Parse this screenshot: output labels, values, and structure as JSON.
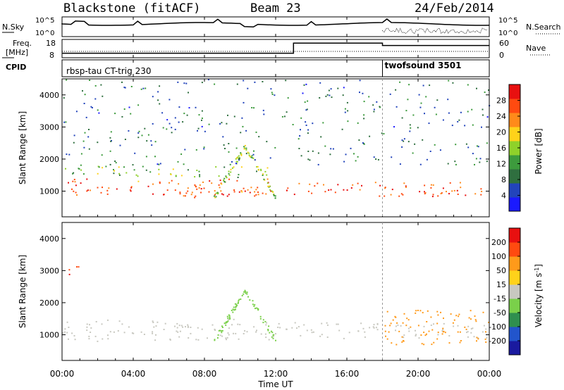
{
  "header": {
    "station": "Blackstone (fitACF)",
    "beam": "Beam 23",
    "date": "24/Feb/2014"
  },
  "top_panels": {
    "nsky_label": "N.Sky",
    "nsky_ticks": [
      "10^5",
      "10^0"
    ],
    "nsearch_label": "N.Search",
    "freq_label_1": "Freq.",
    "freq_label_2": "[MHz]",
    "freq_ticks": [
      "18",
      "8"
    ],
    "nave_label": "Nave",
    "nave_ticks": [
      "60",
      "0"
    ],
    "cpid_label": "CPID",
    "cpid_modes": [
      {
        "name": "rbsp-tau CT-trig 230",
        "start_hour": 0
      },
      {
        "name": "twofsound 3501",
        "start_hour": 18
      }
    ],
    "freq_steps": [
      {
        "start_hour": 0,
        "end_hour": 13,
        "mhz": 10
      },
      {
        "start_hour": 13,
        "end_hour": 18,
        "mhz": 16.5
      },
      {
        "start_hour": 18,
        "end_hour": 24,
        "mhz": 15
      }
    ]
  },
  "chart_data": [
    {
      "type": "heatmap",
      "name": "power",
      "ylabel": "Slant Range [km]",
      "xlabel": "Time UT",
      "xlim": [
        0,
        24
      ],
      "ylim": [
        200,
        4500
      ],
      "x_ticks": [
        "00:00",
        "04:00",
        "08:00",
        "12:00",
        "16:00",
        "20:00",
        "00:00"
      ],
      "y_ticks": [
        1000,
        2000,
        3000,
        4000
      ],
      "colorbar": {
        "label": "Power [dB]",
        "ticks": [
          4,
          8,
          12,
          16,
          20,
          24,
          28
        ],
        "colors": [
          "#1a1aff",
          "#2244bb",
          "#2f6f3f",
          "#3d9b3d",
          "#8fd12a",
          "#ffd21a",
          "#ff8a1a",
          "#ff4a10",
          "#e81010"
        ]
      },
      "regions": [
        {
          "label": "main band",
          "t0": 0,
          "t1": 12.3,
          "r_min": 900,
          "r_max": 1400,
          "level": 26
        },
        {
          "label": "lower dense band",
          "t0": 5.5,
          "t1": 11,
          "r_min": 800,
          "r_max": 1100,
          "level": 28
        },
        {
          "label": "upper green band",
          "t0": 0,
          "t1": 12,
          "r_min": 1450,
          "r_max": 1800,
          "level": 14
        },
        {
          "label": "afternoon band",
          "t0": 12.5,
          "t1": 24,
          "r_min": 850,
          "r_max": 1300,
          "level": 27
        },
        {
          "label": "diagonal feature",
          "t0": 8.5,
          "t1": 12,
          "r_min": 600,
          "r_max": 2400,
          "level": 16
        },
        {
          "label": "scattered echoes",
          "t0": 0,
          "t1": 24,
          "r_min": 1800,
          "r_max": 4500,
          "level": 8
        }
      ]
    },
    {
      "type": "heatmap",
      "name": "velocity",
      "ylabel": "Slant Range [km]",
      "xlabel": "Time UT",
      "xlim": [
        0,
        24
      ],
      "ylim": [
        200,
        4500
      ],
      "x_ticks": [
        "00:00",
        "04:00",
        "08:00",
        "12:00",
        "16:00",
        "20:00",
        "00:00"
      ],
      "y_ticks": [
        1000,
        2000,
        3000,
        4000
      ],
      "colorbar": {
        "label": "Velocity [m s",
        "label_sup": "-1",
        "label_end": "]",
        "ticks": [
          200,
          100,
          50,
          15,
          -15,
          -50,
          -100,
          -200
        ],
        "colors": [
          "#1a1a9f",
          "#2255cc",
          "#2f8f4f",
          "#7ad04a",
          "#c8c8c0",
          "#ffd21a",
          "#ff9a1a",
          "#ff4a10",
          "#e81010"
        ]
      },
      "regions": [
        {
          "label": "ground scatter band",
          "t0": 0,
          "t1": 12.3,
          "r_min": 800,
          "r_max": 1500,
          "level": 0
        },
        {
          "label": "afternoon ground scatter",
          "t0": 12.5,
          "t1": 24,
          "r_min": 900,
          "r_max": 1400,
          "level": 0
        },
        {
          "label": "late red/blue band",
          "t0": 18,
          "t1": 24,
          "r_min": 700,
          "r_max": 1800,
          "level": -80
        },
        {
          "label": "diagonal feature",
          "t0": 8.5,
          "t1": 12,
          "r_min": 600,
          "r_max": 2400,
          "level": 40
        },
        {
          "label": "red patch",
          "t0": 0,
          "t1": 1,
          "r_min": 2900,
          "r_max": 3200,
          "level": -200
        }
      ]
    }
  ]
}
